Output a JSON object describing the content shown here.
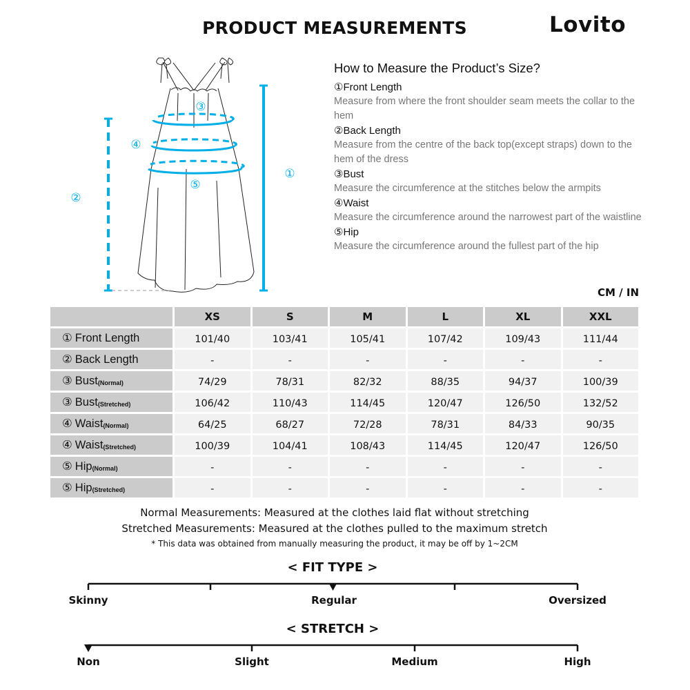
{
  "header": {
    "title": "PRODUCT MEASUREMENTS",
    "brand": "Lovito"
  },
  "diagram": {
    "labels": [
      "①",
      "②",
      "③",
      "④",
      "⑤"
    ],
    "accent_color": "#00aee8"
  },
  "how_to": {
    "title": "How to Measure the Product’s Size?",
    "items": [
      {
        "heading": "①Front Length",
        "desc": "Measure from where the front shoulder seam meets the collar to the hem"
      },
      {
        "heading": "②Back Length",
        "desc": "Measure from the centre of the back top(except straps) down to the hem of the dress"
      },
      {
        "heading": "③Bust",
        "desc": "Measure the circumference at the stitches below the armpits"
      },
      {
        "heading": "④Waist",
        "desc": "Measure the circumference around the narrowest part of the waistline"
      },
      {
        "heading": "⑤Hip",
        "desc": "Measure the circumference around the fullest part of the hip"
      }
    ]
  },
  "unit": "CM / IN",
  "table": {
    "sizes": [
      "XS",
      "S",
      "M",
      "L",
      "XL",
      "XXL"
    ],
    "rows": [
      {
        "num": "①",
        "label": "Front Length",
        "sub": "",
        "values": [
          "101/40",
          "103/41",
          "105/41",
          "107/42",
          "109/43",
          "111/44"
        ]
      },
      {
        "num": "②",
        "label": "Back Length",
        "sub": "",
        "values": [
          "-",
          "-",
          "-",
          "-",
          "-",
          "-"
        ]
      },
      {
        "num": "③",
        "label": "Bust",
        "sub": "(Normal)",
        "values": [
          "74/29",
          "78/31",
          "82/32",
          "88/35",
          "94/37",
          "100/39"
        ]
      },
      {
        "num": "③",
        "label": "Bust",
        "sub": "(Stretched)",
        "values": [
          "106/42",
          "110/43",
          "114/45",
          "120/47",
          "126/50",
          "132/52"
        ]
      },
      {
        "num": "④",
        "label": "Waist",
        "sub": "(Normal)",
        "values": [
          "64/25",
          "68/27",
          "72/28",
          "78/31",
          "84/33",
          "90/35"
        ]
      },
      {
        "num": "④",
        "label": "Waist",
        "sub": "(Stretched)",
        "values": [
          "100/39",
          "104/41",
          "108/43",
          "114/45",
          "120/47",
          "126/50"
        ]
      },
      {
        "num": "⑤",
        "label": "Hip",
        "sub": "(Normal)",
        "values": [
          "-",
          "-",
          "-",
          "-",
          "-",
          "-"
        ]
      },
      {
        "num": "⑤",
        "label": "Hip",
        "sub": "(Stretched)",
        "values": [
          "-",
          "-",
          "-",
          "-",
          "-",
          "-"
        ]
      }
    ]
  },
  "notes": {
    "normal": "Normal Measurements: Measured at the clothes laid flat without stretching",
    "stretched": "Stretched  Measurements: Measured at the clothes pulled to the maximum stretch",
    "disclaimer": "* This data was obtained from manually measuring the product, it may be off by 1~2CM"
  },
  "fit_type": {
    "title": "< FIT TYPE >",
    "labels": [
      "Skinny",
      "Regular",
      "Oversized"
    ],
    "selected": "Regular",
    "marker_position": 0.5
  },
  "stretch": {
    "title": "< STRETCH >",
    "labels": [
      "Non",
      "Slight",
      "Medium",
      "High"
    ],
    "selected": "Non",
    "marker_position": 0
  }
}
